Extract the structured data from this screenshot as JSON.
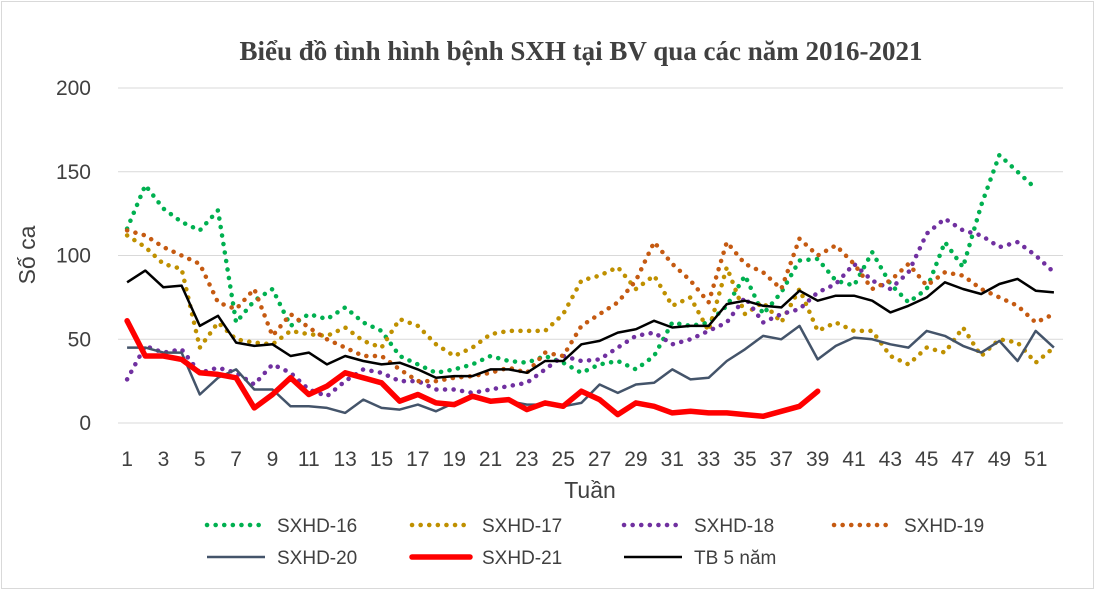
{
  "chart_data": {
    "type": "line",
    "title": "Biểu đồ tình hình bệnh SXH tại BV qua các năm 2016-2021",
    "xlabel": "Tuần",
    "ylabel": "Số ca",
    "ylim": [
      0,
      200
    ],
    "yticks": [
      0,
      50,
      100,
      150,
      200
    ],
    "xlim": [
      1,
      52
    ],
    "xticks": [
      1,
      3,
      5,
      7,
      9,
      11,
      13,
      15,
      17,
      19,
      21,
      23,
      25,
      27,
      29,
      31,
      33,
      35,
      37,
      39,
      41,
      43,
      45,
      47,
      49,
      51
    ],
    "grid": "horizontal",
    "legend_position": "bottom",
    "series": [
      {
        "name": "SXHD-16",
        "color": "#00b050",
        "style": "dotted",
        "values": [
          116,
          142,
          128,
          120,
          115,
          127,
          60,
          73,
          80,
          58,
          65,
          62,
          69,
          60,
          55,
          40,
          35,
          30,
          32,
          35,
          40,
          37,
          36,
          40,
          36,
          30,
          35,
          37,
          32,
          40,
          60,
          58,
          60,
          70,
          88,
          65,
          78,
          97,
          98,
          85,
          82,
          102,
          83,
          72,
          80,
          108,
          93,
          130,
          160,
          150,
          140,
          null
        ]
      },
      {
        "name": "SXHD-17",
        "color": "#bf9000",
        "style": "dotted",
        "values": [
          112,
          105,
          95,
          92,
          45,
          60,
          50,
          48,
          47,
          55,
          53,
          52,
          57,
          49,
          45,
          62,
          58,
          47,
          40,
          45,
          53,
          55,
          55,
          55,
          65,
          85,
          88,
          93,
          80,
          88,
          70,
          75,
          55,
          93,
          65,
          72,
          60,
          80,
          55,
          60,
          55,
          55,
          40,
          35,
          45,
          42,
          57,
          40,
          50,
          48,
          36,
          45
        ]
      },
      {
        "name": "SXHD-18",
        "color": "#7030a0",
        "style": "dotted",
        "values": [
          26,
          46,
          42,
          44,
          30,
          33,
          30,
          23,
          35,
          30,
          20,
          16,
          25,
          32,
          30,
          25,
          25,
          20,
          20,
          18,
          20,
          22,
          24,
          32,
          40,
          37,
          38,
          45,
          52,
          54,
          47,
          50,
          55,
          60,
          75,
          60,
          65,
          68,
          78,
          83,
          95,
          85,
          80,
          90,
          113,
          122,
          115,
          112,
          105,
          108,
          100,
          90
        ]
      },
      {
        "name": "SXHD-19",
        "color": "#c55a11",
        "style": "dotted",
        "values": [
          115,
          112,
          105,
          100,
          95,
          72,
          68,
          80,
          52,
          65,
          57,
          50,
          45,
          40,
          40,
          32,
          25,
          25,
          27,
          28,
          30,
          33,
          30,
          42,
          40,
          58,
          65,
          72,
          85,
          108,
          95,
          85,
          72,
          108,
          95,
          90,
          80,
          110,
          100,
          106,
          95,
          80,
          85,
          95,
          82,
          90,
          88,
          80,
          75,
          70,
          60,
          65
        ]
      },
      {
        "name": "SXHD-20",
        "color": "#44546a",
        "style": "solid",
        "values": [
          45,
          45,
          42,
          42,
          17,
          27,
          32,
          20,
          20,
          10,
          10,
          9,
          6,
          14,
          9,
          8,
          11,
          7,
          12,
          15,
          13,
          13,
          11,
          11,
          10,
          12,
          23,
          18,
          23,
          24,
          32,
          26,
          27,
          37,
          44,
          52,
          50,
          58,
          38,
          46,
          51,
          50,
          47,
          45,
          55,
          52,
          46,
          42,
          49,
          37,
          55,
          45
        ]
      },
      {
        "name": "SXHD-21",
        "color": "#ff0000",
        "style": "thick",
        "values": [
          61,
          40,
          40,
          38,
          30,
          29,
          27,
          9,
          17,
          27,
          17,
          22,
          30,
          27,
          24,
          13,
          17,
          12,
          11,
          16,
          13,
          14,
          8,
          12,
          10,
          19,
          14,
          5,
          12,
          10,
          6,
          7,
          6,
          6,
          5,
          4,
          7,
          10,
          19,
          null,
          null,
          null,
          null,
          null,
          null,
          null,
          null,
          null,
          null,
          null,
          null,
          null
        ]
      },
      {
        "name": "TB 5 năm",
        "color": "#000000",
        "style": "solid",
        "values": [
          84,
          91,
          81,
          82,
          58,
          64,
          48,
          46,
          47,
          40,
          42,
          35,
          40,
          37,
          35,
          36,
          32,
          27,
          28,
          28,
          32,
          32,
          30,
          37,
          37,
          47,
          49,
          54,
          56,
          61,
          57,
          58,
          58,
          71,
          73,
          70,
          69,
          79,
          73,
          76,
          76,
          73,
          66,
          70,
          75,
          84,
          80,
          77,
          83,
          86,
          79,
          78
        ]
      }
    ]
  }
}
